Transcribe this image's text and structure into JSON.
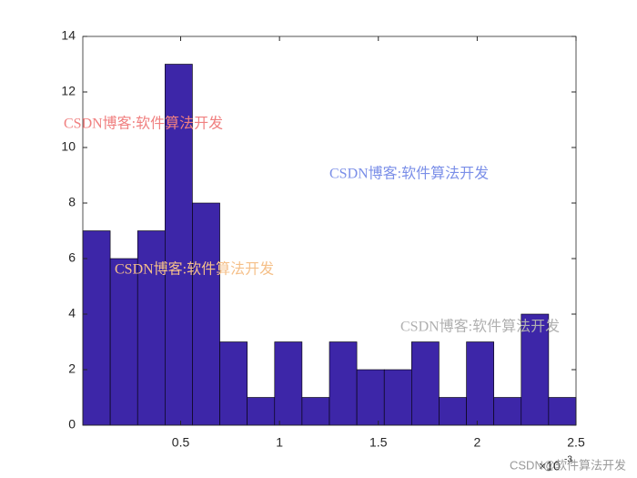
{
  "chart_data": {
    "type": "histogram",
    "bins": [
      0.005,
      0.1436,
      0.2822,
      0.4208,
      0.5594,
      0.6981,
      0.8367,
      0.9753,
      1.1139,
      1.2525,
      1.3911,
      1.5297,
      1.6683,
      1.8069,
      1.9456,
      2.0842,
      2.2228,
      2.3614,
      2.5
    ],
    "values": [
      7,
      6,
      7,
      13,
      8,
      3,
      1,
      3,
      1,
      3,
      2,
      2,
      3,
      1,
      3,
      1,
      4,
      1
    ],
    "color": "#3d26a8",
    "xlim": [
      0.005,
      2.5
    ],
    "xticks": [
      0.5,
      1,
      1.5,
      2,
      2.5
    ],
    "ylim": [
      0,
      14
    ],
    "yticks": [
      0,
      2,
      4,
      6,
      8,
      10,
      12,
      14
    ],
    "x_exponent": {
      "base": "×10",
      "power": "-3"
    },
    "annotations": [
      {
        "text": "CSDN博客:软件算法开发",
        "color": "#f08080"
      },
      {
        "text": "CSDN博客:软件算法开发",
        "color": "#7b8fe8"
      },
      {
        "text": "CSDN博客:软件算法开发",
        "color": "#f5c08a"
      },
      {
        "text": "CSDN博客:软件算法开发",
        "color": "#b0b0b0"
      },
      {
        "text": "CSDN@软件算法开发",
        "color": "#999999"
      }
    ]
  }
}
